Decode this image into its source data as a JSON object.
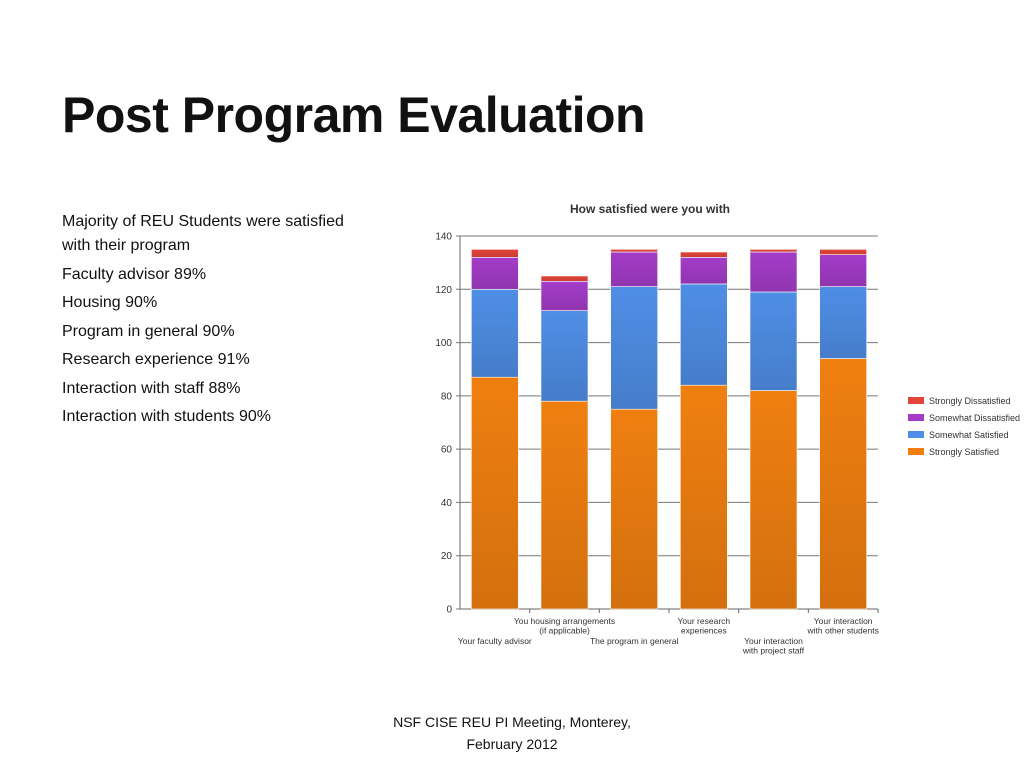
{
  "slide": {
    "title": "Post Program Evaluation",
    "bullets": [
      "Majority of REU Students were satisfied with their program",
      "Faculty advisor 89%",
      "Housing 90%",
      "Program in general 90%",
      "Research experience 91%",
      "Interaction with staff 88%",
      "Interaction with students 90%"
    ],
    "footer": [
      "NSF CISE REU PI Meeting, Monterey,",
      "February 2012"
    ]
  },
  "chart_data": {
    "type": "bar",
    "stacked": true,
    "title": "How satisfied were you with",
    "xlabel": "",
    "ylabel": "",
    "ylim": [
      0,
      140
    ],
    "yticks": [
      0,
      20,
      40,
      60,
      80,
      100,
      120,
      140
    ],
    "grid": true,
    "legend_position": "right",
    "categories": [
      [
        "Your faculty advisor"
      ],
      [
        "You housing arrangements",
        "(if applicable)"
      ],
      [
        "The program in general"
      ],
      [
        "Your research",
        "experiences"
      ],
      [
        "Your interaction",
        "with project staff"
      ],
      [
        "Your interaction",
        "with other students"
      ]
    ],
    "series": [
      {
        "name": "Strongly Satisfied",
        "color": "#f07f10",
        "values": [
          87,
          78,
          75,
          84,
          82,
          94
        ]
      },
      {
        "name": "Somewhat Satisfied",
        "color": "#4f8ee6",
        "values": [
          33,
          34,
          46,
          38,
          37,
          27
        ]
      },
      {
        "name": "Somewhat Dissatisfied",
        "color": "#a43cc8",
        "values": [
          12,
          11,
          13,
          10,
          15,
          12
        ]
      },
      {
        "name": "Strongly Dissatisfied",
        "color": "#e4453a",
        "values": [
          3,
          2,
          1,
          2,
          1,
          2
        ]
      }
    ]
  }
}
